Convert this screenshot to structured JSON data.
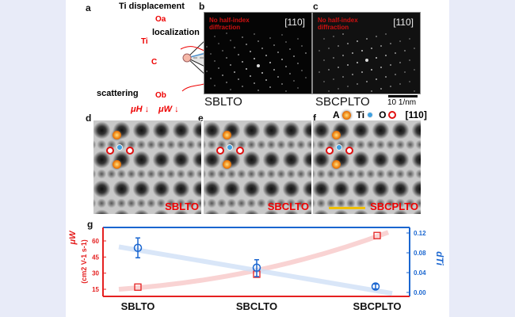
{
  "panel_a": {
    "label": "a",
    "title": "Ti displacement",
    "localization": "localization",
    "scattering": "scattering",
    "Oa": "Oa",
    "Ob": "Ob",
    "Ti": "Ti",
    "C": "C",
    "muH": "μH ↓",
    "muW": "μW ↓"
  },
  "panel_b": {
    "label": "b",
    "note": "No half-index diffraction",
    "zone": "[110]",
    "sample": "SBLTO"
  },
  "panel_c": {
    "label": "c",
    "note": "No half-index diffraction",
    "zone": "[110]",
    "sample": "SBCPLTO",
    "scale": "10 1/nm"
  },
  "panel_d": {
    "label": "d",
    "sample": "SBLTO"
  },
  "panel_e": {
    "label": "e",
    "sample": "SBCLTO"
  },
  "panel_f": {
    "label": "f",
    "sample": "SBCPLTO"
  },
  "legend": {
    "A": "A",
    "Ti": "Ti",
    "O": "O",
    "zone": "[110]"
  },
  "colors": {
    "mu": "#e52020",
    "d": "#1a66d0",
    "A": "#f08010",
    "Ti": "#40a0e0",
    "O": "#e01010"
  },
  "chart_data": {
    "label": "g",
    "type": "scatter",
    "categories": [
      "SBLTO",
      "SBCLTO",
      "SBCPLTO"
    ],
    "ylabel_left": "μW",
    "ylabel_left_unit": "(cm2 V-1 s-1)",
    "ylim_left": [
      8,
      70
    ],
    "yticks_left": [
      "15",
      "30",
      "45",
      "60"
    ],
    "ylabel_right": "dTi",
    "ylim_right": [
      -0.01,
      0.13
    ],
    "yticks_right": [
      "0.00",
      "0.04",
      "0.08",
      "0.12"
    ],
    "series": [
      {
        "axis": "left",
        "marker": "square",
        "values": [
          17,
          29,
          65
        ]
      },
      {
        "axis": "right",
        "marker": "circle",
        "values": [
          0.09,
          0.05,
          0.012
        ],
        "err_low": [
          0.07,
          0.032,
          0.007
        ],
        "err_high": [
          0.11,
          0.066,
          0.017
        ]
      }
    ]
  }
}
